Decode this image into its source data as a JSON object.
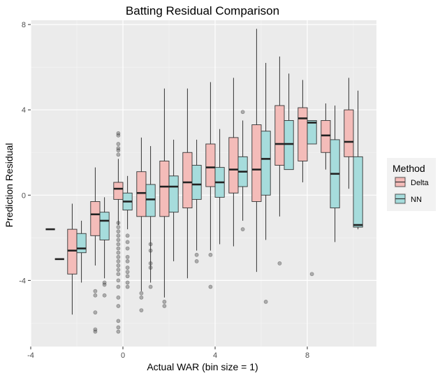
{
  "chart_data": {
    "type": "box",
    "title": "Batting Residual Comparison",
    "xlabel": "Actual WAR (bin size = 1)",
    "ylabel": "Prediction Residual",
    "xlim": [
      -4,
      11
    ],
    "ylim": [
      -7.1,
      8.2
    ],
    "x_ticks": [
      -4,
      0,
      4,
      8
    ],
    "y_ticks": [
      -4,
      0,
      4,
      8
    ],
    "grid": true,
    "legend": {
      "title": "Method",
      "position": "right"
    },
    "series": [
      {
        "name": "Delta",
        "color": "#f4bcb9"
      },
      {
        "name": "NN",
        "color": "#a6dcdc"
      }
    ],
    "boxes": [
      {
        "series": "NN",
        "x": -3.15,
        "q1": -1.6,
        "median": -1.6,
        "q3": -1.6,
        "whisker_low": -1.6,
        "whisker_high": -1.6,
        "outliers": []
      },
      {
        "series": "NN",
        "x": -2.75,
        "q1": -3.0,
        "median": -3.0,
        "q3": -3.0,
        "whisker_low": -3.0,
        "whisker_high": -3.0,
        "outliers": []
      },
      {
        "series": "Delta",
        "x": -2.2,
        "q1": -3.7,
        "median": -2.6,
        "q3": -1.6,
        "whisker_low": -5.6,
        "whisker_high": -0.4,
        "outliers": []
      },
      {
        "series": "NN",
        "x": -1.8,
        "q1": -2.7,
        "median": -2.5,
        "q3": -1.8,
        "whisker_low": -4.1,
        "whisker_high": -1.2,
        "outliers": []
      },
      {
        "series": "Delta",
        "x": -1.2,
        "q1": -1.9,
        "median": -0.9,
        "q3": -0.3,
        "whisker_low": -3.3,
        "whisker_high": 1.3,
        "outliers": [
          -4.5,
          -4.7,
          -5.5,
          -6.3,
          -6.4
        ]
      },
      {
        "series": "NN",
        "x": -0.8,
        "q1": -2.1,
        "median": -1.2,
        "q3": -0.8,
        "whisker_low": -3.9,
        "whisker_high": -0.1,
        "outliers": [
          -4.1,
          -4.2,
          -4.7
        ]
      },
      {
        "series": "Delta",
        "x": -0.2,
        "q1": -0.2,
        "median": 0.3,
        "q3": 0.6,
        "whisker_low": -1.4,
        "whisker_high": 1.7,
        "outliers": [
          2.9,
          2.8,
          2.4,
          2.2,
          2.1,
          1.9,
          -1.3,
          -1.5,
          -1.7,
          -1.9,
          -2.1,
          -2.3,
          -2.5,
          -2.7,
          -2.9,
          -3.1,
          -3.3,
          -3.5,
          -3.7,
          -4.0,
          -4.3,
          -4.8,
          -5.2,
          -5.9,
          -6.2,
          -6.4
        ]
      },
      {
        "series": "NN",
        "x": 0.2,
        "q1": -0.7,
        "median": -0.3,
        "q3": 0.1,
        "whisker_low": -1.6,
        "whisker_high": 0.9,
        "outliers": [
          -1.9,
          -2.2,
          -2.5,
          -2.9,
          -3.1,
          -3.4,
          -3.6,
          -3.8,
          -4.1,
          -4.3
        ]
      },
      {
        "series": "Delta",
        "x": 0.8,
        "q1": -1.0,
        "median": 0.1,
        "q3": 1.1,
        "whisker_low": -4.5,
        "whisker_high": 2.7,
        "outliers": [
          -4.6,
          -4.8,
          -5.4
        ]
      },
      {
        "series": "NN",
        "x": 1.2,
        "q1": -1.0,
        "median": -0.2,
        "q3": 0.5,
        "whisker_low": -4.1,
        "whisker_high": 2.3,
        "outliers": [
          -2.3,
          -2.6,
          -3.2,
          -3.4,
          -4.3
        ]
      },
      {
        "series": "Delta",
        "x": 1.8,
        "q1": -1.0,
        "median": 0.4,
        "q3": 1.6,
        "whisker_low": -4.8,
        "whisker_high": 5.0,
        "outliers": [
          -5.0,
          -5.2
        ]
      },
      {
        "series": "NN",
        "x": 2.2,
        "q1": -0.8,
        "median": 0.4,
        "q3": 0.9,
        "whisker_low": -3.1,
        "whisker_high": 2.6,
        "outliers": []
      },
      {
        "series": "Delta",
        "x": 2.8,
        "q1": -0.6,
        "median": 0.6,
        "q3": 2.0,
        "whisker_low": -3.9,
        "whisker_high": 5.0,
        "outliers": []
      },
      {
        "series": "NN",
        "x": 3.2,
        "q1": -0.2,
        "median": 0.5,
        "q3": 1.4,
        "whisker_low": -2.6,
        "whisker_high": 2.6,
        "outliers": [
          -2.8,
          -3.1
        ]
      },
      {
        "series": "Delta",
        "x": 3.8,
        "q1": 0.4,
        "median": 1.3,
        "q3": 2.4,
        "whisker_low": -2.6,
        "whisker_high": 5.3,
        "outliers": [
          -2.8,
          -4.3
        ]
      },
      {
        "series": "NN",
        "x": 4.2,
        "q1": -0.1,
        "median": 0.6,
        "q3": 1.3,
        "whisker_low": -2.3,
        "whisker_high": 3.1,
        "outliers": []
      },
      {
        "series": "Delta",
        "x": 4.8,
        "q1": 0.1,
        "median": 1.2,
        "q3": 2.7,
        "whisker_low": -2.4,
        "whisker_high": 5.5,
        "outliers": []
      },
      {
        "series": "NN",
        "x": 5.2,
        "q1": 0.4,
        "median": 1.1,
        "q3": 1.8,
        "whisker_low": -1.2,
        "whisker_high": 3.5,
        "outliers": [
          3.9,
          -1.6
        ]
      },
      {
        "series": "Delta",
        "x": 5.8,
        "q1": -0.3,
        "median": 1.2,
        "q3": 3.3,
        "whisker_low": -3.6,
        "whisker_high": 7.8,
        "outliers": []
      },
      {
        "series": "NN",
        "x": 6.2,
        "q1": 0.0,
        "median": 1.7,
        "q3": 3.0,
        "whisker_low": -2.1,
        "whisker_high": 6.2,
        "outliers": [
          -5.0
        ]
      },
      {
        "series": "Delta",
        "x": 6.8,
        "q1": 1.4,
        "median": 2.4,
        "q3": 4.2,
        "whisker_low": -1.0,
        "whisker_high": 6.5,
        "outliers": [
          -3.2
        ]
      },
      {
        "series": "NN",
        "x": 7.2,
        "q1": 1.2,
        "median": 2.4,
        "q3": 3.5,
        "whisker_low": 1.2,
        "whisker_high": 5.7,
        "outliers": []
      },
      {
        "series": "Delta",
        "x": 7.8,
        "q1": 1.6,
        "median": 3.6,
        "q3": 4.1,
        "whisker_low": 0.6,
        "whisker_high": 5.4,
        "outliers": []
      },
      {
        "series": "NN",
        "x": 8.2,
        "q1": 2.4,
        "median": 3.4,
        "q3": 3.5,
        "whisker_low": 2.4,
        "whisker_high": 3.5,
        "outliers": [
          -3.7
        ]
      },
      {
        "series": "Delta",
        "x": 8.8,
        "q1": 2.0,
        "median": 2.8,
        "q3": 3.5,
        "whisker_low": 1.2,
        "whisker_high": 4.3,
        "outliers": []
      },
      {
        "series": "NN",
        "x": 9.2,
        "q1": -0.6,
        "median": 1.0,
        "q3": 2.6,
        "whisker_low": -2.2,
        "whisker_high": 4.2,
        "outliers": []
      },
      {
        "series": "Delta",
        "x": 9.8,
        "q1": 1.8,
        "median": 2.5,
        "q3": 4.0,
        "whisker_low": 0.3,
        "whisker_high": 5.5,
        "outliers": []
      },
      {
        "series": "NN",
        "x": 10.2,
        "q1": -1.5,
        "median": -1.4,
        "q3": 1.8,
        "whisker_low": -1.6,
        "whisker_high": 4.9,
        "outliers": []
      }
    ]
  }
}
